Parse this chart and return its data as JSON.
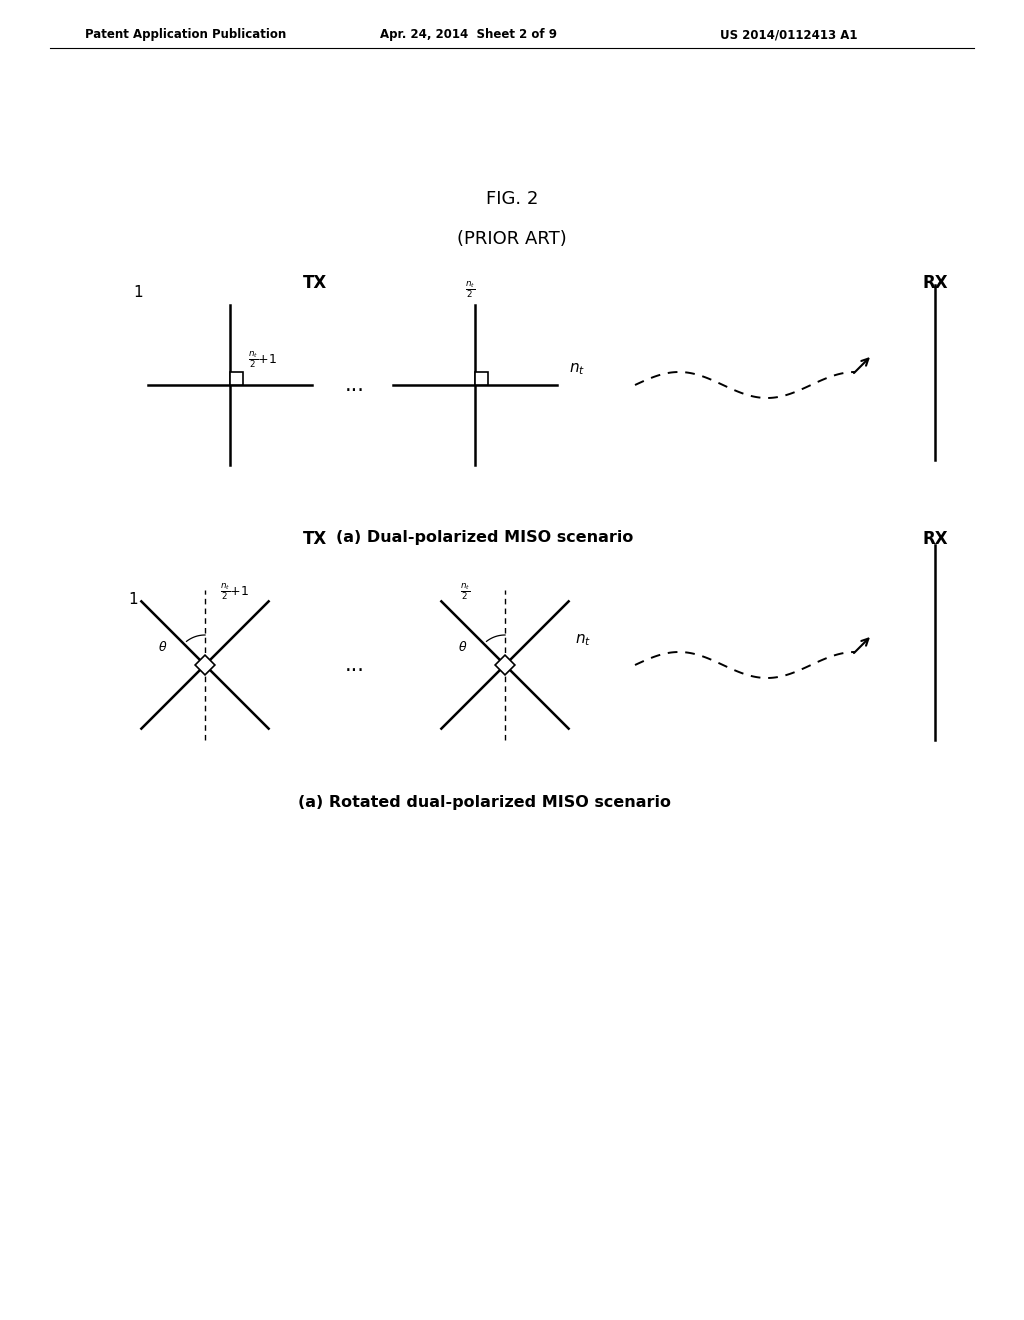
{
  "bg_color": "#ffffff",
  "header_left": "Patent Application Publication",
  "header_mid": "Apr. 24, 2014  Sheet 2 of 9",
  "header_right": "US 2014/0112413 A1",
  "fig_title_line1": "FIG. 2",
  "fig_title_line2": "(PRIOR ART)",
  "caption_a": "(a) Dual-polarized MISO scenario",
  "caption_b": "(a) Rotated dual-polarized MISO scenario",
  "tx_label": "TX",
  "rx_label": "RX"
}
